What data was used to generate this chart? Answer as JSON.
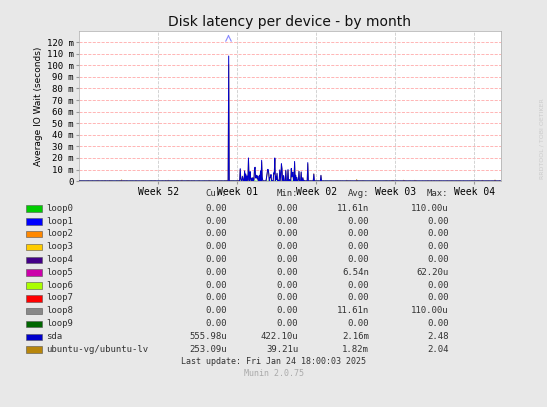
{
  "title": "Disk latency per device - by month",
  "ylabel": "Average IO Wait (seconds)",
  "bg_color": "#e8e8e8",
  "plot_bg_color": "#ffffff",
  "grid_color_h": "#ffaaaa",
  "grid_color_v": "#cccccc",
  "x_tick_labels": [
    "Week 52",
    "Week 01",
    "Week 02",
    "Week 03",
    "Week 04"
  ],
  "y_ticks": [
    0,
    10,
    20,
    30,
    40,
    50,
    60,
    70,
    80,
    90,
    100,
    110,
    120
  ],
  "y_tick_labels": [
    "0",
    "10 m",
    "20 m",
    "30 m",
    "40 m",
    "50 m",
    "60 m",
    "70 m",
    "80 m",
    "90 m",
    "100 m",
    "110 m",
    "120 m"
  ],
  "ylim": [
    0,
    130
  ],
  "title_fontsize": 10,
  "legend": {
    "items": [
      {
        "label": "loop0",
        "color": "#00cc00"
      },
      {
        "label": "loop1",
        "color": "#0000ff"
      },
      {
        "label": "loop2",
        "color": "#ff8800"
      },
      {
        "label": "loop3",
        "color": "#ffcc00"
      },
      {
        "label": "loop4",
        "color": "#440088"
      },
      {
        "label": "loop5",
        "color": "#cc00aa"
      },
      {
        "label": "loop6",
        "color": "#aaff00"
      },
      {
        "label": "loop7",
        "color": "#ff0000"
      },
      {
        "label": "loop8",
        "color": "#888888"
      },
      {
        "label": "loop9",
        "color": "#006600"
      },
      {
        "label": "sda",
        "color": "#0000cc"
      },
      {
        "label": "ubuntu-vg/ubuntu-lv",
        "color": "#b8860b"
      }
    ],
    "cur": [
      "0.00",
      "0.00",
      "0.00",
      "0.00",
      "0.00",
      "0.00",
      "0.00",
      "0.00",
      "0.00",
      "0.00",
      "555.98u",
      "253.09u"
    ],
    "min": [
      "0.00",
      "0.00",
      "0.00",
      "0.00",
      "0.00",
      "0.00",
      "0.00",
      "0.00",
      "0.00",
      "0.00",
      "422.10u",
      "39.21u"
    ],
    "avg": [
      "11.61n",
      "0.00",
      "0.00",
      "0.00",
      "0.00",
      "6.54n",
      "0.00",
      "0.00",
      "11.61n",
      "0.00",
      "2.16m",
      "1.82m"
    ],
    "max": [
      "110.00u",
      "0.00",
      "0.00",
      "0.00",
      "0.00",
      "62.20u",
      "0.00",
      "0.00",
      "110.00u",
      "0.00",
      "2.48",
      "2.04"
    ]
  },
  "footer_update": "Last update: Fri Jan 24 18:00:03 2025",
  "footer_munin": "Munin 2.0.75",
  "watermark": "RRDTOOL / TOBI OETIKER"
}
